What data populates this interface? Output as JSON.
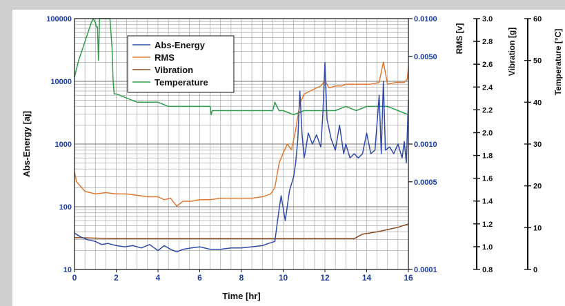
{
  "chart_data": {
    "type": "line",
    "xlabel": "Time [hr]",
    "xlim": [
      0,
      16
    ],
    "x_ticks": [
      "0",
      "2",
      "4",
      "6",
      "8",
      "10",
      "12",
      "14",
      "16"
    ],
    "axes": {
      "abs_energy": {
        "label": "Abs-Energy [aj]",
        "scale": "log",
        "range": [
          10,
          100000
        ],
        "ticks": [
          "10",
          "100",
          "1000",
          "10000",
          "100000"
        ]
      },
      "rms": {
        "label": "RMS [v]",
        "scale": "log",
        "range": [
          0.0001,
          0.01
        ],
        "ticks": [
          "0.0001",
          "0.0005",
          "0.0010",
          "0.0050",
          "0.0100"
        ]
      },
      "vibration": {
        "label": "Vibration [g]",
        "scale": "linear",
        "range": [
          0.8,
          3.0
        ],
        "ticks": [
          "0.8",
          "1.0",
          "1.2",
          "1.4",
          "1.6",
          "1.8",
          "2.0",
          "2.2",
          "2.4",
          "2.6",
          "2.8",
          "3.0"
        ]
      },
      "temperature": {
        "label": "Temperature [°C]",
        "scale": "linear",
        "range": [
          0,
          60
        ],
        "ticks": [
          "0",
          "10",
          "20",
          "30",
          "40",
          "50",
          "60"
        ]
      }
    },
    "legend_position": "top-left",
    "grid": true,
    "series": [
      {
        "name": "Abs-Energy",
        "axis": "abs_energy",
        "color": "#2f4aa8",
        "x": [
          0,
          0.3,
          0.6,
          1,
          1.3,
          1.6,
          2,
          2.4,
          2.8,
          3.2,
          3.6,
          4,
          4.3,
          4.6,
          4.9,
          5.2,
          5.6,
          6,
          6.5,
          7,
          7.5,
          8,
          8.5,
          9,
          9.3,
          9.6,
          9.7,
          9.8,
          9.9,
          10.1,
          10.3,
          10.5,
          10.6,
          10.7,
          10.8,
          10.9,
          11,
          11.1,
          11.2,
          11.4,
          11.6,
          11.8,
          11.9,
          12,
          12.1,
          12.3,
          12.5,
          12.7,
          12.9,
          13,
          13.2,
          13.4,
          13.6,
          13.8,
          14,
          14.2,
          14.4,
          14.6,
          14.7,
          14.8,
          14.9,
          15.1,
          15.3,
          15.5,
          15.7,
          15.8,
          15.9,
          16
        ],
        "y": [
          38,
          33,
          30,
          28,
          25,
          26,
          24,
          23,
          24,
          22,
          25,
          20,
          24,
          21,
          19,
          21,
          22,
          23,
          21,
          21,
          22,
          22,
          23,
          24,
          26,
          28,
          50,
          90,
          150,
          60,
          180,
          300,
          500,
          1200,
          7000,
          1500,
          600,
          900,
          1500,
          1000,
          1400,
          900,
          3000,
          20000,
          2500,
          1200,
          800,
          2000,
          700,
          1000,
          600,
          700,
          600,
          700,
          1500,
          700,
          800,
          6000,
          700,
          10000,
          800,
          900,
          700,
          1000,
          600,
          1100,
          500,
          5000
        ]
      },
      {
        "name": "RMS",
        "axis": "rms",
        "color": "#e07a30",
        "x": [
          0,
          0.1,
          0.5,
          1,
          1.5,
          2,
          2.5,
          3,
          3.5,
          4,
          4.3,
          4.6,
          4.9,
          5.2,
          5.6,
          6,
          6.5,
          7,
          7.5,
          8,
          8.5,
          9,
          9.4,
          9.6,
          9.8,
          10,
          10.2,
          10.4,
          10.6,
          10.8,
          11,
          11.2,
          11.4,
          11.6,
          11.8,
          12,
          12.2,
          12.5,
          12.8,
          13,
          13.4,
          13.8,
          14.2,
          14.6,
          14.8,
          15,
          15.4,
          15.8,
          15.95,
          16
        ],
        "y": [
          0.0006,
          0.0005,
          0.00042,
          0.0004,
          0.00041,
          0.0004,
          0.0004,
          0.00039,
          0.00038,
          0.00038,
          0.00036,
          0.00037,
          0.00032,
          0.00035,
          0.00035,
          0.00036,
          0.00036,
          0.00037,
          0.00037,
          0.00037,
          0.00037,
          0.00038,
          0.0004,
          0.00045,
          0.0007,
          0.00085,
          0.001,
          0.0009,
          0.0013,
          0.0021,
          0.0025,
          0.0026,
          0.0027,
          0.0028,
          0.0029,
          0.0032,
          0.0028,
          0.0029,
          0.0029,
          0.003,
          0.003,
          0.003,
          0.003,
          0.0031,
          0.0045,
          0.003,
          0.0031,
          0.0031,
          0.0033,
          0.0042
        ]
      },
      {
        "name": "Vibration",
        "axis": "vibration",
        "color": "#8b4a1c",
        "x": [
          0,
          2,
          4,
          6,
          8,
          10,
          12,
          13.4,
          13.8,
          14.5,
          15,
          15.5,
          16
        ],
        "y": [
          1.08,
          1.07,
          1.07,
          1.07,
          1.07,
          1.07,
          1.07,
          1.07,
          1.11,
          1.13,
          1.15,
          1.17,
          1.2
        ]
      },
      {
        "name": "Temperature",
        "axis": "temperature",
        "color": "#2e9e4a",
        "x": [
          0,
          0.1,
          0.2,
          0.4,
          0.6,
          0.8,
          0.9,
          1,
          1.05,
          1.1,
          1.15,
          1.2,
          1.25,
          1.5,
          1.7,
          1.8,
          1.85,
          1.9,
          2,
          2.5,
          3,
          3.5,
          4,
          4.5,
          5,
          5.5,
          6,
          6.5,
          6.55,
          6.6,
          6.7,
          7,
          7.5,
          8,
          8.5,
          9,
          9.5,
          9.6,
          9.7,
          9.8,
          10,
          10.5,
          11,
          11.5,
          12,
          12.5,
          13,
          13.5,
          14,
          14.5,
          15,
          15.5,
          16
        ],
        "y": [
          46,
          48,
          50,
          53,
          56,
          59,
          60,
          59,
          58,
          58,
          50,
          60,
          60,
          60,
          60,
          53,
          45,
          42,
          42,
          41,
          40,
          40,
          40,
          39,
          39,
          39,
          39,
          39,
          37,
          38,
          38,
          38,
          38,
          38,
          38,
          38,
          38,
          40,
          39,
          38,
          38,
          37,
          38,
          38,
          38,
          38,
          39,
          38,
          39,
          39,
          39,
          38,
          37
        ]
      }
    ]
  }
}
